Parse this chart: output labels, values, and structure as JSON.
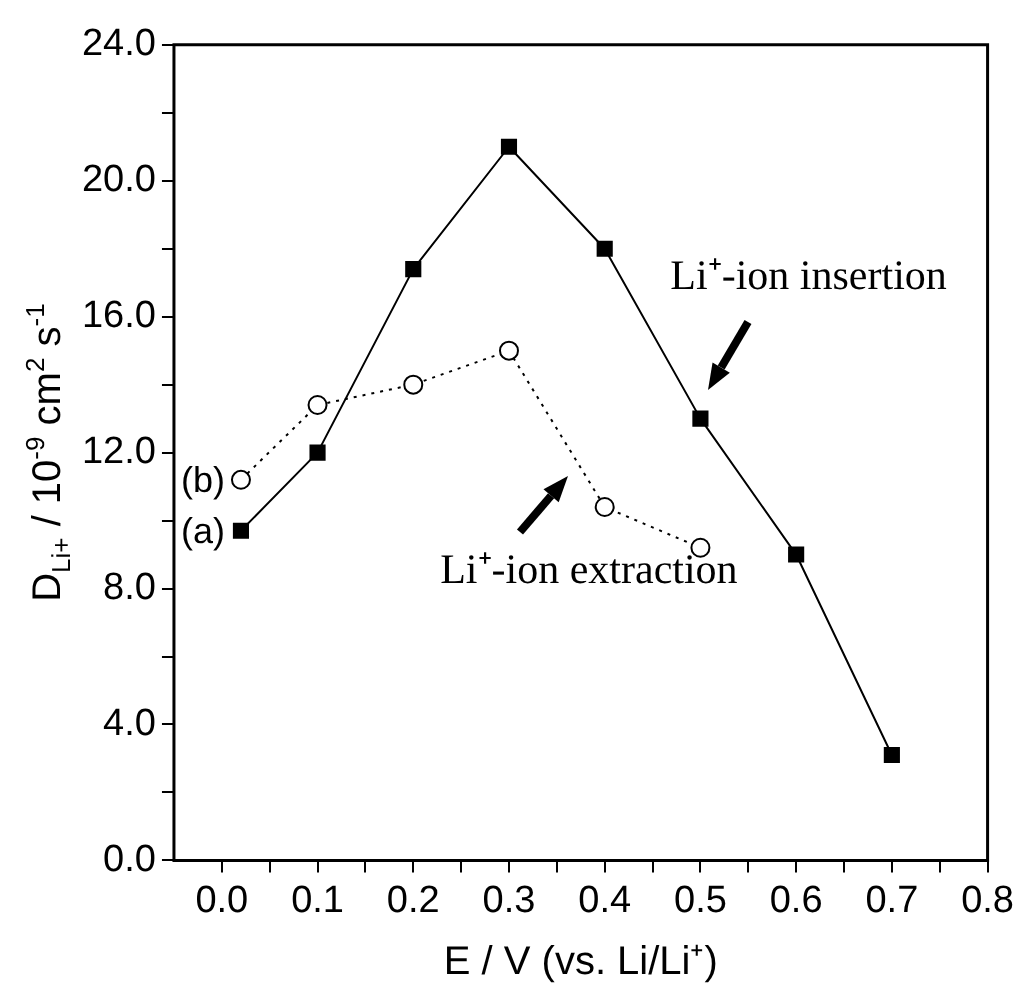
{
  "chart_data": {
    "type": "line",
    "xlabel": "E / V (vs. Li/Li⁺)",
    "ylabel": "D$_{Li+}$ / 10$^{-9}$ cm$^{2}$ s$^{-1}$",
    "series": [
      {
        "name": "(a)",
        "color": "#000000",
        "marker": "square",
        "line_style": "solid",
        "x": [
          0.02,
          0.1,
          0.2,
          0.3,
          0.4,
          0.5,
          0.6,
          0.7
        ],
        "values": [
          9.7,
          12.0,
          17.4,
          21.0,
          18.0,
          13.0,
          9.0,
          3.1
        ]
      },
      {
        "name": "(b)",
        "color": "#000000",
        "marker": "circle",
        "line_style": "dotted",
        "x": [
          0.02,
          0.1,
          0.2,
          0.3,
          0.4,
          0.5
        ],
        "values": [
          11.2,
          13.4,
          14.0,
          15.0,
          10.4,
          9.2
        ]
      }
    ],
    "xlim": [
      -0.05,
      0.8
    ],
    "xticks": [
      {
        "value": 0,
        "label": "0.0"
      },
      {
        "value": 0.05,
        "label": null
      },
      {
        "value": 0.1,
        "label": "0.1"
      },
      {
        "value": 0.15,
        "label": null
      },
      {
        "value": 0.2,
        "label": "0.2"
      },
      {
        "value": 0.25,
        "label": null
      },
      {
        "value": 0.3,
        "label": "0.3"
      },
      {
        "value": 0.35,
        "label": null
      },
      {
        "value": 0.4,
        "label": "0.4"
      },
      {
        "value": 0.45,
        "label": null
      },
      {
        "value": 0.5,
        "label": "0.5"
      },
      {
        "value": 0.55,
        "label": null
      },
      {
        "value": 0.6,
        "label": "0.6"
      },
      {
        "value": 0.65,
        "label": null
      },
      {
        "value": 0.7,
        "label": "0.7"
      },
      {
        "value": 0.75,
        "label": null
      },
      {
        "value": 0.8,
        "label": "0.8"
      }
    ],
    "ylim": [
      0,
      24
    ],
    "yticks": [
      {
        "value": 0,
        "label": "0.0"
      },
      {
        "value": 2,
        "label": null
      },
      {
        "value": 4,
        "label": "4.0"
      },
      {
        "value": 6,
        "label": null
      },
      {
        "value": 8,
        "label": "8.0"
      },
      {
        "value": 10,
        "label": null
      },
      {
        "value": 12,
        "label": "12.0"
      },
      {
        "value": 14,
        "label": null
      },
      {
        "value": 16,
        "label": "16.0"
      },
      {
        "value": 18,
        "label": null
      },
      {
        "value": 20,
        "label": "20.0"
      },
      {
        "value": 22,
        "label": null
      },
      {
        "value": 24,
        "label": "24.0"
      }
    ],
    "grid": false,
    "legend": false,
    "annotations": [
      "Li⁺-ion insertion",
      "Li⁺-ion extraction"
    ]
  }
}
